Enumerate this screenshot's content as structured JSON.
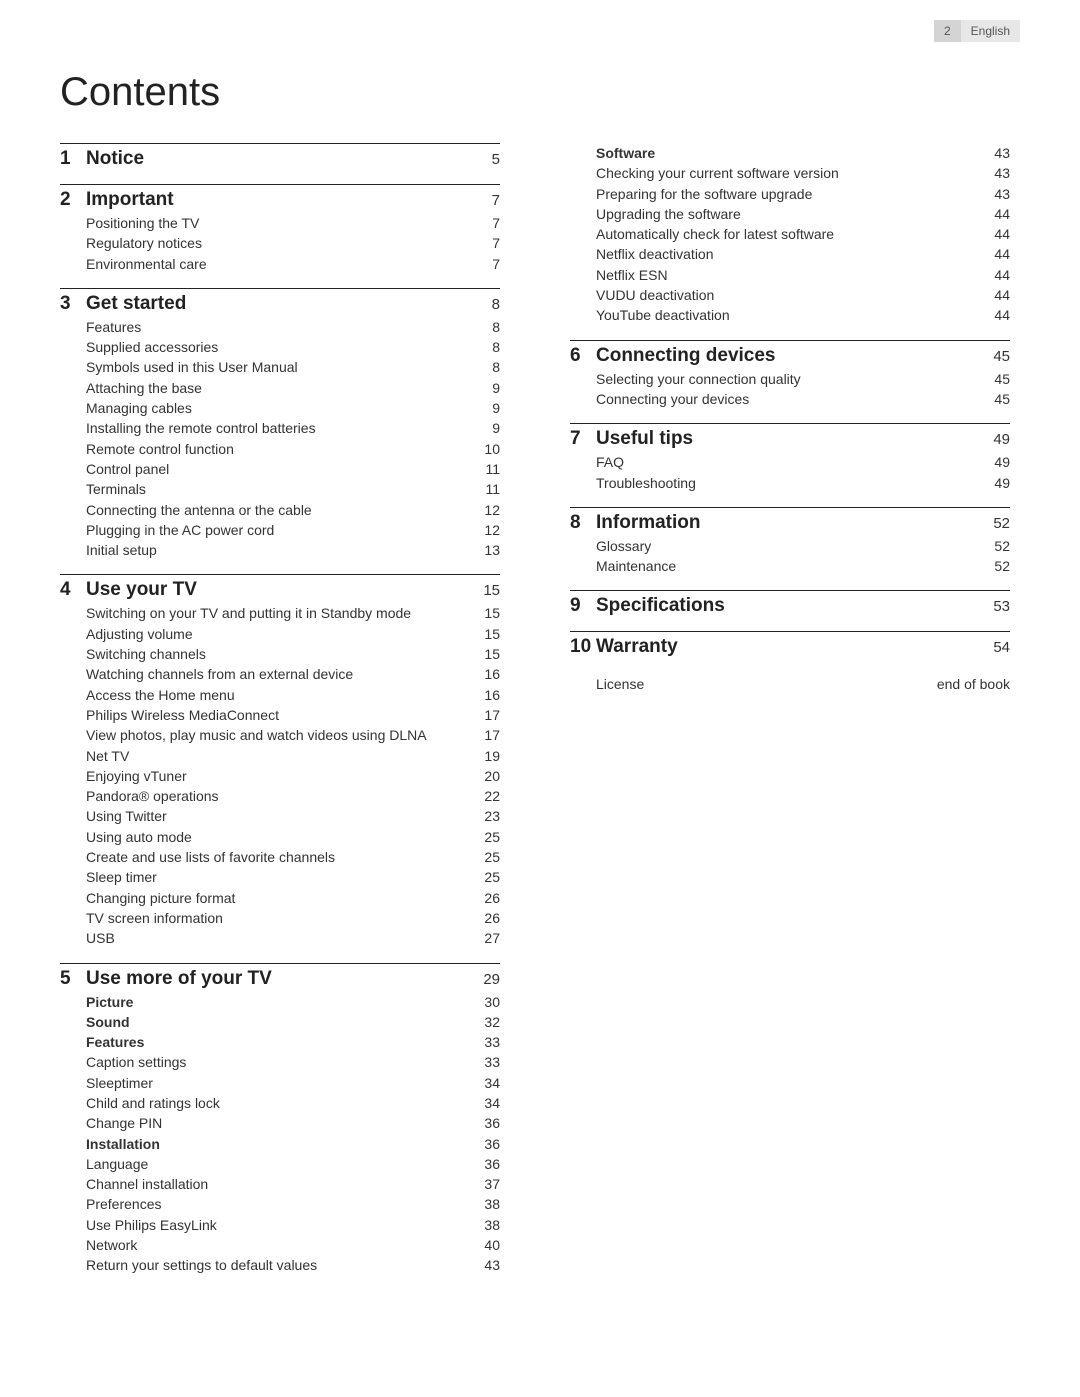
{
  "header": {
    "page_number": "2",
    "language": "English"
  },
  "title": "Contents",
  "left_sections": [
    {
      "num": "1",
      "title": "Notice",
      "page": "5",
      "items": []
    },
    {
      "num": "2",
      "title": "Important",
      "page": "7",
      "items": [
        {
          "label": "Positioning the TV",
          "page": "7"
        },
        {
          "label": "Regulatory notices",
          "page": "7"
        },
        {
          "label": "Environmental care",
          "page": "7"
        }
      ]
    },
    {
      "num": "3",
      "title": "Get started",
      "page": "8",
      "items": [
        {
          "label": "Features",
          "page": "8"
        },
        {
          "label": "Supplied accessories",
          "page": "8"
        },
        {
          "label": "Symbols used in this User Manual",
          "page": "8"
        },
        {
          "label": "Attaching the base",
          "page": "9"
        },
        {
          "label": "Managing cables",
          "page": "9"
        },
        {
          "label": "Installing the remote control batteries",
          "page": "9"
        },
        {
          "label": "Remote control function",
          "page": "10"
        },
        {
          "label": "Control panel",
          "page": "11"
        },
        {
          "label": "Terminals",
          "page": "11"
        },
        {
          "label": "Connecting the antenna or the cable",
          "page": "12"
        },
        {
          "label": "Plugging in the AC power cord",
          "page": "12"
        },
        {
          "label": "Initial setup",
          "page": "13"
        }
      ]
    },
    {
      "num": "4",
      "title": "Use your TV",
      "page": "15",
      "items": [
        {
          "label": "Switching on your TV and putting it in Standby mode",
          "page": "15"
        },
        {
          "label": "Adjusting volume",
          "page": "15"
        },
        {
          "label": "Switching channels",
          "page": "15"
        },
        {
          "label": "Watching channels from an external device",
          "page": "16"
        },
        {
          "label": "Access the Home menu",
          "page": "16"
        },
        {
          "label": "Philips Wireless MediaConnect",
          "page": "17"
        },
        {
          "label": "View photos, play music and watch videos using DLNA",
          "page": "17"
        },
        {
          "label": "Net TV",
          "page": "19"
        },
        {
          "label": "Enjoying vTuner",
          "page": "20"
        },
        {
          "label": "Pandora® operations",
          "page": "22"
        },
        {
          "label": "Using Twitter",
          "page": "23"
        },
        {
          "label": "Using auto mode",
          "page": "25"
        },
        {
          "label": "Create and use lists of favorite channels",
          "page": "25"
        },
        {
          "label": "Sleep timer",
          "page": "25"
        },
        {
          "label": "Changing picture format",
          "page": "26"
        },
        {
          "label": "TV screen information",
          "page": "26"
        },
        {
          "label": "USB",
          "page": "27"
        }
      ]
    },
    {
      "num": "5",
      "title": "Use more of your TV",
      "page": "29",
      "items": [
        {
          "label": "Picture",
          "page": "30",
          "bold": true
        },
        {
          "label": "Sound",
          "page": "32",
          "bold": true
        },
        {
          "label": "Features",
          "page": "33",
          "bold": true
        },
        {
          "label": "Caption settings",
          "page": "33"
        },
        {
          "label": "Sleeptimer",
          "page": "34"
        },
        {
          "label": "Child and ratings lock",
          "page": "34"
        },
        {
          "label": "Change PIN",
          "page": "36"
        },
        {
          "label": "Installation",
          "page": "36",
          "bold": true
        },
        {
          "label": "Language",
          "page": "36"
        },
        {
          "label": "Channel installation",
          "page": "37"
        },
        {
          "label": "Preferences",
          "page": "38"
        },
        {
          "label": "Use Philips EasyLink",
          "page": "38"
        },
        {
          "label": "Network",
          "page": "40"
        },
        {
          "label": "Return your settings to default values",
          "page": "43"
        }
      ]
    }
  ],
  "right_sections": [
    {
      "continuation": true,
      "items": [
        {
          "label": "Software",
          "page": "43",
          "bold": true
        },
        {
          "label": "Checking your current software version",
          "page": "43"
        },
        {
          "label": "Preparing for the software upgrade",
          "page": "43"
        },
        {
          "label": "Upgrading the software",
          "page": "44"
        },
        {
          "label": "Automatically check for latest software",
          "page": "44"
        },
        {
          "label": "Netflix deactivation",
          "page": "44"
        },
        {
          "label": "Netflix ESN",
          "page": "44"
        },
        {
          "label": "VUDU deactivation",
          "page": "44"
        },
        {
          "label": "YouTube deactivation",
          "page": "44"
        }
      ]
    },
    {
      "num": "6",
      "title": "Connecting devices",
      "page": "45",
      "items": [
        {
          "label": "Selecting your connection quality",
          "page": "45"
        },
        {
          "label": "Connecting your devices",
          "page": "45"
        }
      ]
    },
    {
      "num": "7",
      "title": "Useful tips",
      "page": "49",
      "items": [
        {
          "label": "FAQ",
          "page": "49"
        },
        {
          "label": "Troubleshooting",
          "page": "49"
        }
      ]
    },
    {
      "num": "8",
      "title": "Information",
      "page": "52",
      "items": [
        {
          "label": "Glossary",
          "page": "52"
        },
        {
          "label": "Maintenance",
          "page": "52"
        }
      ]
    },
    {
      "num": "9",
      "title": "Specifications",
      "page": "53",
      "items": []
    },
    {
      "num": "10",
      "title": "Warranty",
      "page": "54",
      "items": []
    }
  ],
  "license": {
    "label": "License",
    "page": "end of book"
  }
}
